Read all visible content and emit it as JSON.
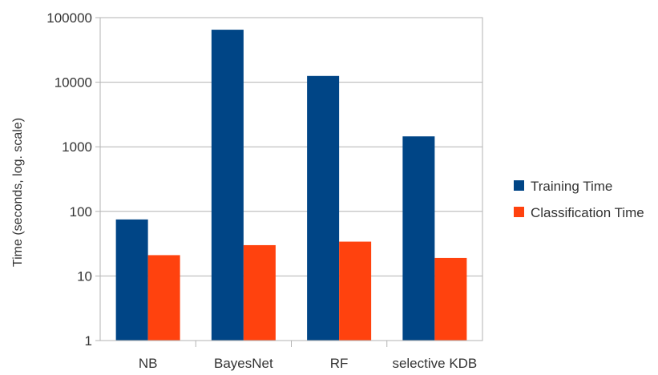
{
  "chart_data": {
    "type": "bar",
    "title": "",
    "xlabel": "",
    "ylabel": "Time (seconds, log. scale)",
    "yscale": "log",
    "ylim": [
      1,
      100000
    ],
    "yticks": [
      "1",
      "10",
      "100",
      "1000",
      "10000",
      "100000"
    ],
    "grid": true,
    "legend_position": "right",
    "categories": [
      "NB",
      "BayesNet",
      "RF",
      "selective KDB"
    ],
    "series": [
      {
        "name": "Training Time",
        "color": "#004586",
        "values": [
          75,
          65000,
          12500,
          1450
        ]
      },
      {
        "name": "Classification Time",
        "color": "#ff420e",
        "values": [
          21,
          30,
          34,
          19
        ]
      }
    ]
  }
}
